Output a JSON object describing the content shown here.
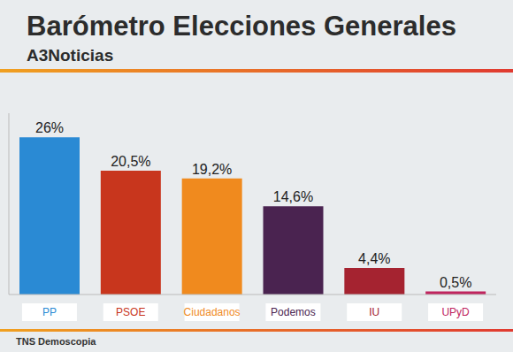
{
  "chart_data": {
    "type": "bar",
    "title": "Barómetro Elecciones Generales",
    "subtitle": "A3Noticias",
    "source": "TNS Demoscopia",
    "categories": [
      "PP",
      "PSOE",
      "Ciudadanos",
      "Podemos",
      "IU",
      "UPyD"
    ],
    "values": [
      26,
      20.5,
      19.2,
      14.6,
      4.4,
      0.5
    ],
    "value_labels": [
      "26%",
      "20,5%",
      "19,2%",
      "14,6%",
      "4,4%",
      "0,5%"
    ],
    "colors": [
      "#2a8ad4",
      "#c8361d",
      "#f08a1e",
      "#4a2350",
      "#a52330",
      "#c0245e"
    ],
    "ylim": [
      0,
      30
    ],
    "data_labels": true,
    "tick_labels": "x"
  }
}
